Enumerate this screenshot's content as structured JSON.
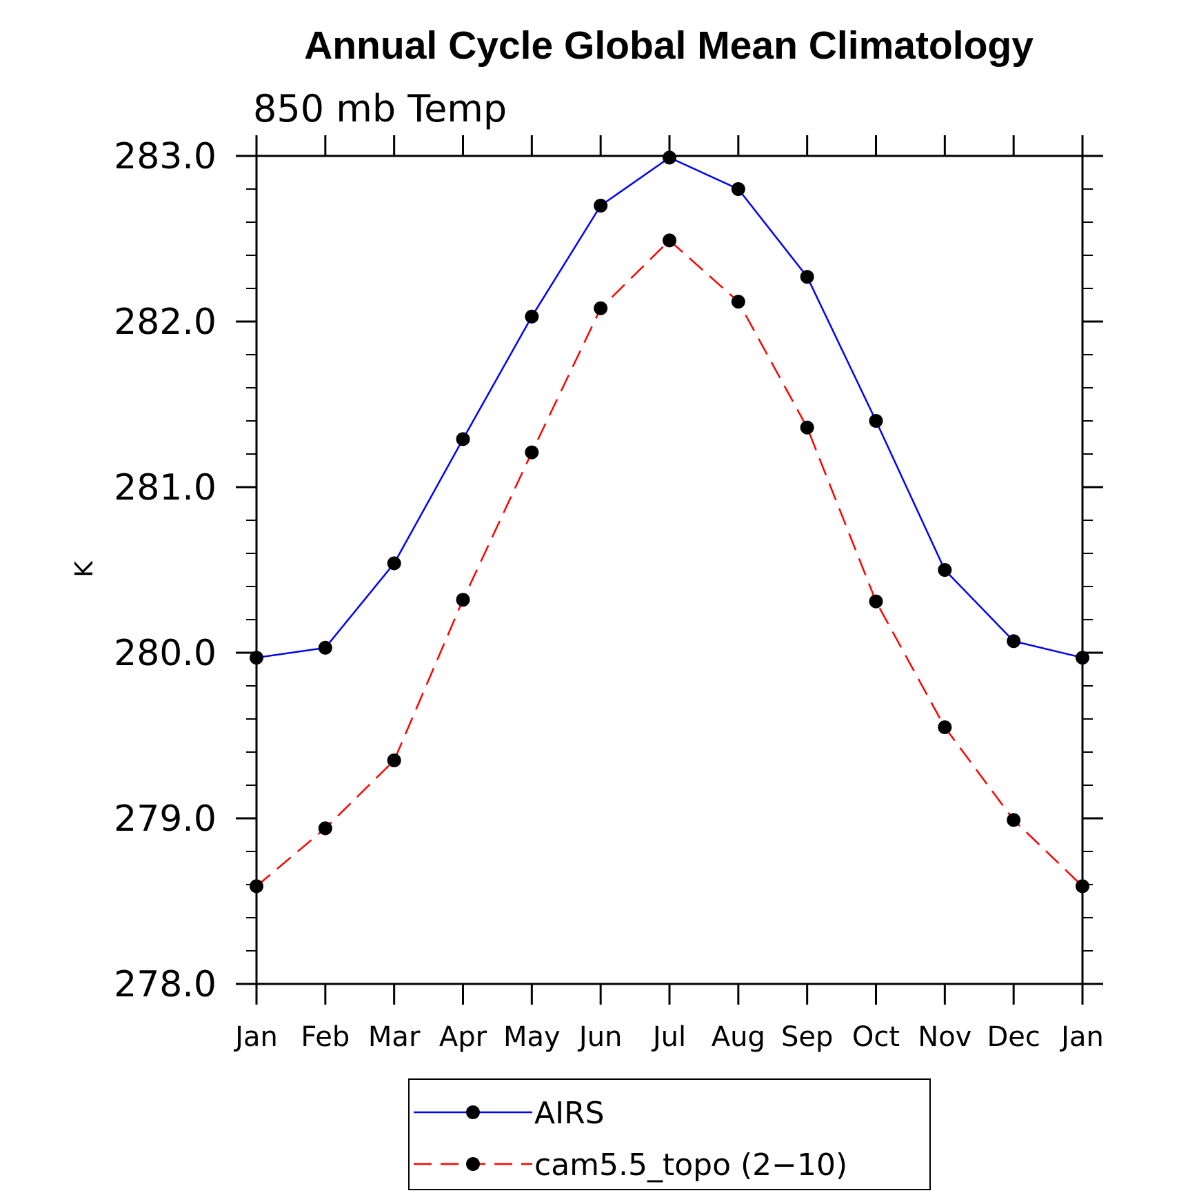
{
  "chart_data": {
    "type": "line",
    "title": "Annual Cycle Global Mean Climatology",
    "subtitle": "850 mb Temp",
    "xlabel": "",
    "ylabel": "K",
    "categories": [
      "Jan",
      "Feb",
      "Mar",
      "Apr",
      "May",
      "Jun",
      "Jul",
      "Aug",
      "Sep",
      "Oct",
      "Nov",
      "Dec",
      "Jan"
    ],
    "ylim": [
      278.0,
      283.0
    ],
    "yticks": [
      278.0,
      279.0,
      280.0,
      281.0,
      282.0,
      283.0
    ],
    "ytick_labels": [
      "278.0",
      "279.0",
      "280.0",
      "281.0",
      "282.0",
      "283.0"
    ],
    "y_minor_step": 0.2,
    "grid": false,
    "legend_position": "bottom-center",
    "series": [
      {
        "name": "AIRS",
        "color": "#0000ff",
        "dash": "solid",
        "marker": "circle",
        "values": [
          279.97,
          280.03,
          280.54,
          281.29,
          282.03,
          282.7,
          282.99,
          282.8,
          282.27,
          281.4,
          280.5,
          280.07,
          279.97
        ]
      },
      {
        "name": "cam5.5_topo (2−10)",
        "color": "#ff0000",
        "dash": "dashed",
        "marker": "circle",
        "values": [
          278.59,
          278.94,
          279.35,
          280.32,
          281.21,
          282.08,
          282.49,
          282.12,
          281.36,
          280.31,
          279.55,
          278.99,
          278.59
        ]
      }
    ]
  }
}
